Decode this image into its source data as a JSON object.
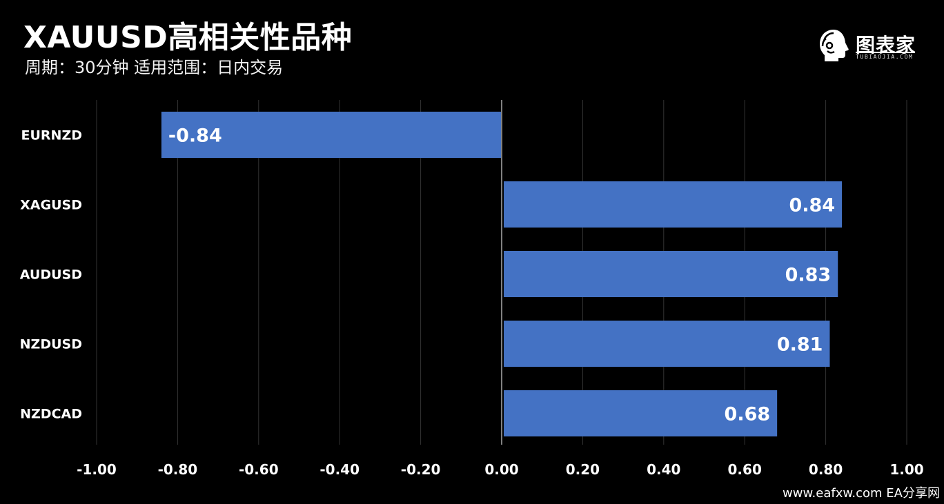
{
  "header": {
    "title": "XAUUSD高相关性品种",
    "subtitle": "周期：30分钟  适用范围：日内交易"
  },
  "logo": {
    "name": "图表家",
    "subtext": "TUBIAOJIA.COM",
    "icon": "head-profile-icon"
  },
  "footer": {
    "text": "www.eafxw.com   EA分享网"
  },
  "colors": {
    "background": "#000000",
    "bar": "#4472C4",
    "grid": "#333333",
    "axis": "#808080",
    "text": "#FFFFFF"
  },
  "chart_data": {
    "type": "bar",
    "orientation": "horizontal",
    "categories": [
      "EURNZD",
      "XAGUSD",
      "AUDUSD",
      "NZDUSD",
      "NZDCAD"
    ],
    "values": [
      -0.84,
      0.84,
      0.83,
      0.81,
      0.68
    ],
    "data_labels": [
      "-0.84",
      "0.84",
      "0.83",
      "0.81",
      "0.68"
    ],
    "xlim": [
      -1.0,
      1.0
    ],
    "xticks": [
      -1.0,
      -0.8,
      -0.6,
      -0.4,
      -0.2,
      0.0,
      0.2,
      0.4,
      0.6,
      0.8,
      1.0
    ],
    "xtick_labels": [
      "-1.00",
      "-0.80",
      "-0.60",
      "-0.40",
      "-0.20",
      "0.00",
      "0.20",
      "0.40",
      "0.60",
      "0.80",
      "1.00"
    ],
    "grid": true,
    "legend": "none"
  }
}
